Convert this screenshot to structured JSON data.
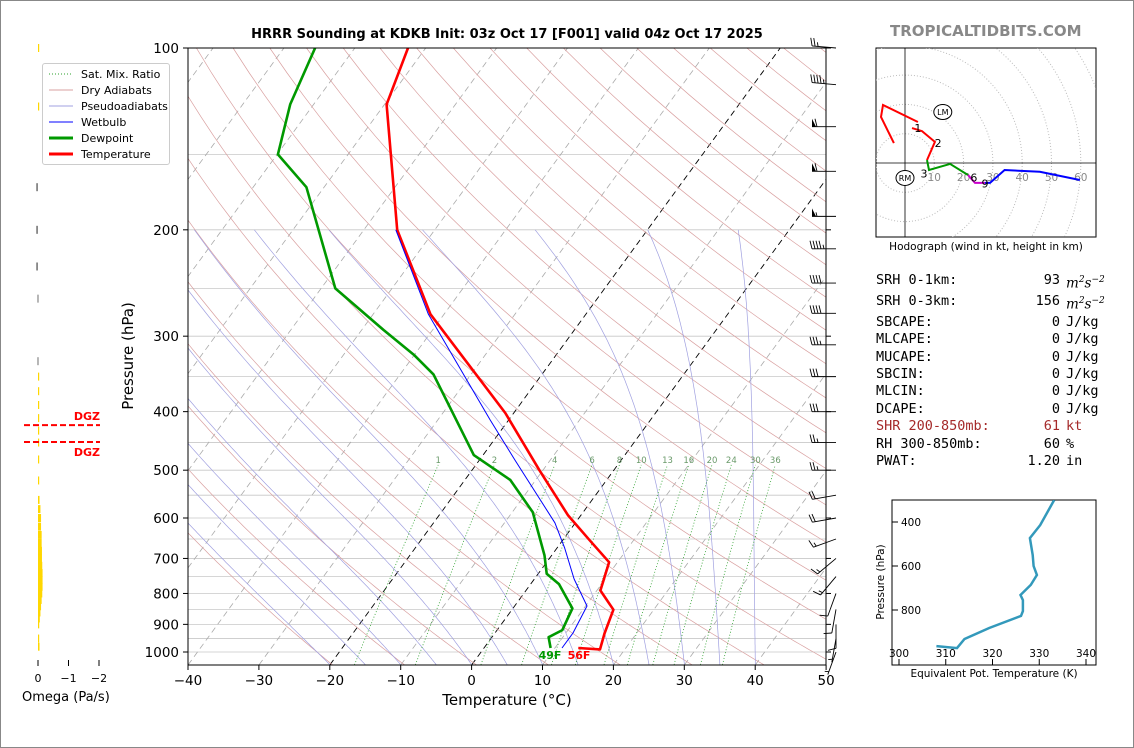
{
  "brand": "TROPICALTIDBITS.COM",
  "title": "HRRR Sounding at KDKB Init: 03z Oct 17 [F001] valid 04z Oct 17 2025",
  "legend": [
    {
      "label": "Sat. Mix. Ratio",
      "color": "#2ca02c",
      "style": "dotted"
    },
    {
      "label": "Dry Adiabats",
      "color": "#d9a0a0",
      "style": "solid"
    },
    {
      "label": "Pseudoadiabats",
      "color": "#a0a0e0",
      "style": "solid"
    },
    {
      "label": "Wetbulb",
      "color": "#0000ff",
      "style": "solid"
    },
    {
      "label": "Dewpoint",
      "color": "#009900",
      "style": "thick"
    },
    {
      "label": "Temperature",
      "color": "#ff0000",
      "style": "thick"
    }
  ],
  "stats": [
    {
      "label": "SRH 0-1km:",
      "value": "93",
      "unit": "m2s-2",
      "unit_html": true,
      "color": "#000000"
    },
    {
      "label": "SRH 0-3km:",
      "value": "156",
      "unit": "m2s-2",
      "unit_html": true,
      "color": "#000000"
    },
    {
      "label": "SBCAPE:",
      "value": "0",
      "unit": "J/kg",
      "color": "#000000"
    },
    {
      "label": "MLCAPE:",
      "value": "0",
      "unit": "J/kg",
      "color": "#000000"
    },
    {
      "label": "MUCAPE:",
      "value": "0",
      "unit": "J/kg",
      "color": "#000000"
    },
    {
      "label": "SBCIN:",
      "value": "0",
      "unit": "J/kg",
      "color": "#000000"
    },
    {
      "label": "MLCIN:",
      "value": "0",
      "unit": "J/kg",
      "color": "#000000"
    },
    {
      "label": "DCAPE:",
      "value": "0",
      "unit": "J/kg",
      "color": "#000000"
    },
    {
      "label": "SHR 200-850mb:",
      "value": "61",
      "unit": "kt",
      "color": "#a52a2a"
    },
    {
      "label": "RH 300-850mb:",
      "value": "60",
      "unit": "%",
      "color": "#000000"
    },
    {
      "label": "PWAT:",
      "value": "1.20",
      "unit": "in",
      "color": "#000000"
    }
  ],
  "chart_data": [
    {
      "type": "line",
      "name": "skew-t",
      "xlabel": "Temperature (°C)",
      "ylabel": "Pressure (hPa)",
      "xlim": [
        -40,
        50
      ],
      "ylim": [
        1050,
        100
      ],
      "xticks": [
        -40,
        -30,
        -20,
        -10,
        0,
        10,
        20,
        30,
        40,
        50
      ],
      "yticks": [
        100,
        200,
        300,
        400,
        500,
        600,
        700,
        800,
        900,
        1000
      ],
      "mixing_ratio_labels": [
        "1",
        "2",
        "4",
        "6",
        "8",
        "10",
        "13",
        "16",
        "20",
        "24",
        "30",
        "36"
      ],
      "mixing_ratio_values": [
        1,
        2,
        4,
        6,
        8,
        10,
        13,
        16,
        20,
        24,
        30,
        36
      ],
      "surface_labels": {
        "dewpoint": "49F",
        "temperature": "56F"
      },
      "series": [
        {
          "name": "Temperature",
          "color": "#ff0000",
          "p": [
            985,
            990,
            932,
            851,
            791,
            710,
            653,
            594,
            500,
            402,
            276,
            200,
            124,
            100
          ],
          "t": [
            13.3,
            16.5,
            15.5,
            14.3,
            10.5,
            8.8,
            3.8,
            -1.8,
            -10.5,
            -21.2,
            -41.9,
            -55.3,
            -69.7,
            -72.5
          ]
        },
        {
          "name": "Dewpoint",
          "color": "#009900",
          "p": [
            985,
            945,
            920,
            847,
            772,
            742,
            692,
            587,
            519,
            472,
            347,
            322,
            293,
            250,
            170,
            150,
            124,
            100
          ],
          "t": [
            9.4,
            8.0,
            9.2,
            8.4,
            4.0,
            1.2,
            -1.0,
            -7.1,
            -13.6,
            -21.3,
            -35.3,
            -40.1,
            -46.9,
            -58.0,
            -72.5,
            -79.9,
            -83.3,
            -85.6
          ]
        },
        {
          "name": "Wetbulb",
          "color": "#0000ff",
          "p": [
            985,
            930,
            839,
            757,
            673,
            611,
            481,
            413,
            276,
            200
          ],
          "t": [
            11.0,
            11.0,
            10.2,
            5.6,
            1.1,
            -2.9,
            -15.0,
            -22.6,
            -42.2,
            -55.5
          ]
        }
      ],
      "wind_barbs": [
        {
          "p": 100,
          "dir": 275,
          "kt": 25
        },
        {
          "p": 115,
          "dir": 275,
          "kt": 45
        },
        {
          "p": 135,
          "dir": 270,
          "kt": 60
        },
        {
          "p": 160,
          "dir": 270,
          "kt": 60
        },
        {
          "p": 190,
          "dir": 270,
          "kt": 55
        },
        {
          "p": 215,
          "dir": 270,
          "kt": 45
        },
        {
          "p": 245,
          "dir": 270,
          "kt": 40
        },
        {
          "p": 275,
          "dir": 270,
          "kt": 40
        },
        {
          "p": 310,
          "dir": 270,
          "kt": 35
        },
        {
          "p": 350,
          "dir": 270,
          "kt": 30
        },
        {
          "p": 400,
          "dir": 270,
          "kt": 30
        },
        {
          "p": 450,
          "dir": 270,
          "kt": 25
        },
        {
          "p": 500,
          "dir": 270,
          "kt": 25
        },
        {
          "p": 550,
          "dir": 260,
          "kt": 20
        },
        {
          "p": 600,
          "dir": 260,
          "kt": 20
        },
        {
          "p": 650,
          "dir": 250,
          "kt": 15
        },
        {
          "p": 700,
          "dir": 230,
          "kt": 15
        },
        {
          "p": 750,
          "dir": 220,
          "kt": 15
        },
        {
          "p": 800,
          "dir": 200,
          "kt": 10
        },
        {
          "p": 850,
          "dir": 190,
          "kt": 10
        },
        {
          "p": 900,
          "dir": 180,
          "kt": 10
        },
        {
          "p": 950,
          "dir": 190,
          "kt": 5
        },
        {
          "p": 1000,
          "dir": 200,
          "kt": 5
        }
      ]
    },
    {
      "type": "bar",
      "name": "omega",
      "xlabel": "Omega (Pa/s)",
      "xticks": [
        "0",
        "−1",
        "−2"
      ],
      "xtick_values": [
        0,
        -1,
        -2
      ],
      "dgz_label": "DGZ",
      "dgz_top_p": 470,
      "dgz_bottom_p": 421,
      "p": [
        100,
        125,
        170,
        200,
        230,
        260,
        330,
        350,
        370,
        390,
        410,
        430,
        450,
        480,
        520,
        560,
        580,
        600,
        620,
        640,
        660,
        680,
        700,
        720,
        740,
        760,
        780,
        800,
        820,
        840,
        860,
        880,
        900,
        950,
        980
      ],
      "omega": [
        -0.02,
        -0.02,
        0.06,
        0.06,
        0.06,
        0.02,
        0.02,
        -0.02,
        -0.03,
        -0.03,
        -0.03,
        -0.03,
        -0.03,
        -0.03,
        -0.03,
        -0.05,
        -0.08,
        -0.1,
        -0.1,
        -0.12,
        -0.12,
        -0.13,
        -0.13,
        -0.14,
        -0.15,
        -0.15,
        -0.15,
        -0.14,
        -0.12,
        -0.1,
        -0.08,
        -0.06,
        -0.04,
        -0.02,
        -0.05
      ]
    },
    {
      "type": "line",
      "name": "hodograph",
      "caption": "Hodograph (wind in kt, height in km)",
      "ring_labels": [
        "10",
        "20",
        "30",
        "40",
        "50",
        "60"
      ],
      "segments": [
        {
          "color": "#ff0000",
          "u": [
            -3.8,
            -8.2,
            -7.5,
            4.4
          ],
          "v": [
            6.8,
            15.7,
            19.8,
            14.0
          ]
        },
        {
          "color": "#ff0000",
          "u": [
            2.4,
            5.8,
            10.2,
            7.5
          ],
          "v": [
            11.9,
            10.9,
            7.2,
            1.0
          ]
        },
        {
          "color": "#009900",
          "u": [
            7.5,
            8.2,
            15.4,
            21.5
          ],
          "v": [
            1.0,
            -2.4,
            -0.3,
            -4.1
          ]
        },
        {
          "color": "#cc00cc",
          "u": [
            21.5,
            23.9,
            27.3
          ],
          "v": [
            -4.1,
            -6.8,
            -6.8
          ]
        },
        {
          "color": "#0000ff",
          "u": [
            27.3,
            29.0,
            34.0,
            46.0,
            59.7
          ],
          "v": [
            -6.8,
            -6.8,
            -2.4,
            -3.0,
            -5.8
          ]
        }
      ],
      "height_labels": [
        {
          "text": "1",
          "u": 4.4,
          "v": 12
        },
        {
          "text": "2",
          "u": 11.3,
          "v": 6.8
        },
        {
          "text": "3",
          "u": 6.5,
          "v": -3.5
        },
        {
          "text": "6",
          "u": 23.5,
          "v": -5
        },
        {
          "text": "9",
          "u": 27.3,
          "v": -7
        }
      ],
      "storm_motion": [
        {
          "text": "LM",
          "u": 12.9,
          "v": 17.4
        },
        {
          "text": "RM",
          "u": 0,
          "v": -5.1
        }
      ]
    },
    {
      "type": "line",
      "name": "theta-e",
      "xlabel": "Equivalent Pot. Temperature (K)",
      "ylabel": "Pressure (hPa)",
      "xticks": [
        300,
        310,
        320,
        330,
        340
      ],
      "yticks": [
        400,
        600,
        800
      ],
      "color": "#3399bb",
      "theta_e": [
        333.2,
        330.2,
        328.0,
        328.6,
        328.8,
        329.5,
        328.2,
        326.0,
        326.5,
        326.5,
        326.1,
        319.3,
        314.0,
        312.4,
        308.0
      ],
      "p": [
        300,
        414,
        473,
        550,
        600,
        641,
        686,
        732,
        755,
        805,
        827,
        882,
        932,
        973,
        964
      ]
    }
  ]
}
